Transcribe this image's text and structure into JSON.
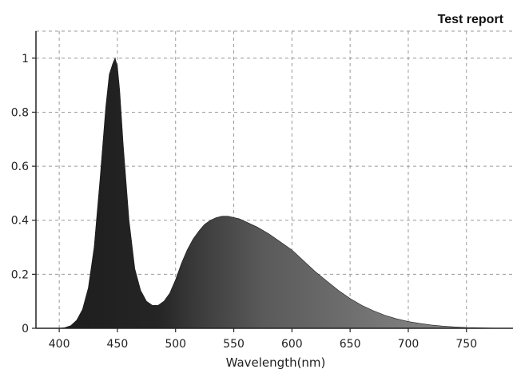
{
  "header": {
    "report_title": "Test report"
  },
  "chart_data": {
    "type": "area",
    "title": "",
    "xlabel": "Wavelength(nm)",
    "ylabel": "",
    "xlim": [
      380,
      790
    ],
    "ylim": [
      0,
      1.1
    ],
    "x_ticks": [
      400,
      450,
      500,
      550,
      600,
      650,
      700,
      750
    ],
    "y_ticks": [
      0,
      0.2,
      0.4,
      0.6,
      0.8,
      1
    ],
    "x_tick_labels": [
      "400",
      "450",
      "500",
      "550",
      "600",
      "650",
      "700",
      "750"
    ],
    "y_tick_labels": [
      "0",
      "0.2",
      "0.4",
      "0.6",
      "0.8",
      "1"
    ],
    "grid": true,
    "grid_style": "dashed",
    "colors": {
      "fill_dark": "#2b2b2b",
      "fill_mid": "#555555",
      "fill_light": "#7a7a7a",
      "axis": "#222222",
      "grid": "#9a9a9a"
    },
    "series": [
      {
        "x": [
          400,
          405,
          410,
          415,
          420,
          425,
          430,
          435,
          440,
          443,
          446,
          448,
          450,
          452,
          455,
          460,
          465,
          470,
          475,
          480,
          485,
          490,
          495,
          500,
          505,
          510,
          515,
          520,
          525,
          530,
          535,
          540,
          545,
          550,
          555,
          560,
          565,
          570,
          580,
          590,
          600,
          610,
          620,
          630,
          640,
          650,
          660,
          670,
          680,
          690,
          700,
          710,
          720,
          730,
          740,
          750,
          760,
          770,
          780,
          790
        ],
        "values": [
          0.0,
          0.003,
          0.01,
          0.03,
          0.07,
          0.15,
          0.3,
          0.55,
          0.82,
          0.94,
          0.98,
          1.0,
          0.97,
          0.88,
          0.68,
          0.4,
          0.22,
          0.14,
          0.1,
          0.085,
          0.085,
          0.1,
          0.13,
          0.18,
          0.24,
          0.29,
          0.33,
          0.36,
          0.385,
          0.4,
          0.41,
          0.415,
          0.415,
          0.41,
          0.405,
          0.395,
          0.385,
          0.375,
          0.35,
          0.32,
          0.29,
          0.25,
          0.21,
          0.175,
          0.14,
          0.11,
          0.085,
          0.065,
          0.048,
          0.035,
          0.025,
          0.018,
          0.012,
          0.008,
          0.005,
          0.003,
          0.002,
          0.001,
          0.0,
          0.0
        ]
      }
    ]
  }
}
